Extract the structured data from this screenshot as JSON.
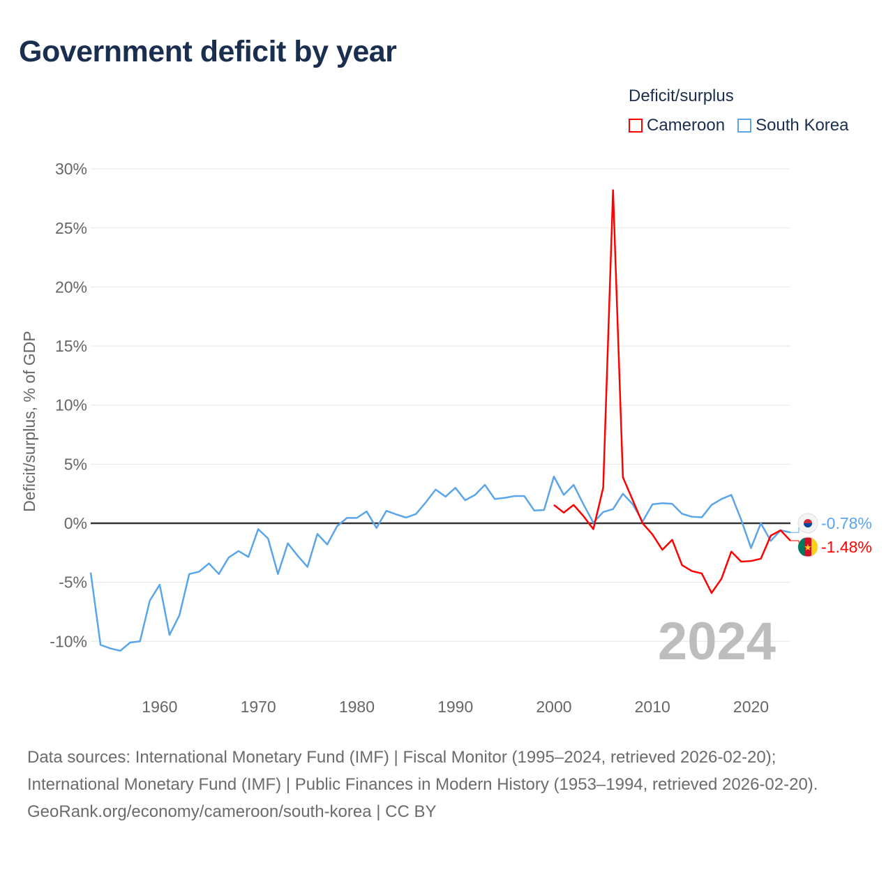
{
  "title": "Government deficit by year",
  "legend": {
    "title": "Deficit/surplus",
    "items": [
      {
        "label": "Cameroon",
        "color": "#ff0000"
      },
      {
        "label": "South Korea",
        "color": "#5aa5ea"
      }
    ]
  },
  "year_label": "2024",
  "footer": {
    "sources": "Data sources: International Monetary Fund (IMF) | Fiscal Monitor (1995–2024, retrieved 2026-02-20); International Monetary Fund (IMF) | Public Finances in Modern History (1953–1994, retrieved 2026-02-20).",
    "link": "GeoRank.org/economy/cameroon/south-korea | CC BY"
  },
  "chart_data": {
    "type": "line",
    "title": "Government deficit by year",
    "xlabel": "",
    "ylabel": "Deficit/surplus, % of GDP",
    "xlim": [
      1953,
      2024
    ],
    "ylim": [
      -12.5,
      31
    ],
    "yticks": [
      30,
      25,
      20,
      15,
      10,
      5,
      0,
      -5,
      -10
    ],
    "ytick_labels": [
      "30%",
      "25%",
      "20%",
      "15%",
      "10%",
      "5%",
      "0%",
      "-5%",
      "-10%"
    ],
    "xticks": [
      1960,
      1970,
      1980,
      1990,
      2000,
      2010,
      2020
    ],
    "xtick_labels": [
      "1960",
      "1970",
      "1980",
      "1990",
      "2000",
      "2010",
      "2020"
    ],
    "grid": true,
    "legend_position": "top-right",
    "series": [
      {
        "name": "South Korea",
        "color": "#5aa5ea",
        "end_label": "-0.78%",
        "start_year": 1953,
        "values": [
          -4.18,
          -10.3,
          -10.6,
          -10.8,
          -10.1,
          -10.0,
          -6.55,
          -5.2,
          -9.45,
          -7.8,
          -4.3,
          -4.1,
          -3.4,
          -4.3,
          -2.9,
          -2.35,
          -2.85,
          -0.5,
          -1.3,
          -4.3,
          -1.7,
          -2.75,
          -3.7,
          -0.9,
          -1.8,
          -0.25,
          0.45,
          0.45,
          1.0,
          -0.4,
          1.05,
          0.75,
          0.48,
          0.78,
          1.77,
          2.85,
          2.25,
          3.0,
          1.95,
          2.4,
          3.25,
          2.05,
          2.15,
          2.3,
          2.3,
          1.08,
          1.12,
          3.95,
          2.4,
          3.25,
          1.6,
          0.05,
          0.95,
          1.2,
          2.5,
          1.6,
          0.15,
          1.6,
          1.7,
          1.65,
          0.8,
          0.55,
          0.5,
          1.55,
          2.05,
          2.4,
          0.3,
          -2.1,
          0.0,
          -1.5,
          -0.6,
          -0.78
        ]
      },
      {
        "name": "Cameroon",
        "color": "#ff0000",
        "end_label": "-1.48%",
        "start_year": 2000,
        "values": [
          1.55,
          0.9,
          1.55,
          0.6,
          -0.5,
          3.0,
          28.2,
          3.9,
          1.95,
          0.0,
          -0.95,
          -2.25,
          -1.4,
          -3.55,
          -4.05,
          -4.25,
          -5.9,
          -4.7,
          -2.4,
          -3.25,
          -3.2,
          -3.0,
          -1.05,
          -0.6,
          -1.48
        ]
      }
    ]
  }
}
